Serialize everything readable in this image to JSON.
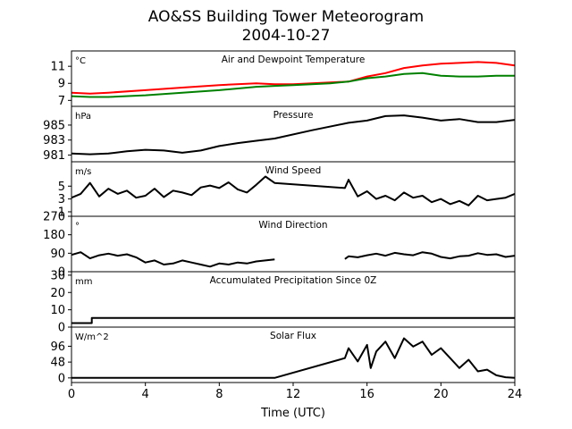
{
  "title": "AO&SS Building Tower Meteorogram",
  "subtitle": "2004-10-27",
  "xlabel": "Time (UTC)",
  "chart_data": {
    "type": "line",
    "title": "AO&SS Building Tower Meteorogram",
    "subtitle": "2004-10-27",
    "xlabel": "Time (UTC)",
    "xlim": [
      0,
      24
    ],
    "xticks": [
      0,
      4,
      8,
      12,
      16,
      20,
      24
    ],
    "xtick_labels": [
      "0",
      "4",
      "8",
      "12",
      "16",
      "20",
      "24"
    ],
    "grid": false,
    "panels": [
      {
        "name": "temperature",
        "label": "Air and Dewpoint Temperature",
        "unit": "°C",
        "ylim": [
          6.3,
          12.8
        ],
        "yticks": [
          7,
          9,
          11
        ],
        "ytick_labels": [
          "7",
          "9",
          "11"
        ],
        "series": [
          {
            "color": "#ff0000",
            "x": [
              0,
              1,
              2,
              4,
              6,
              8,
              10,
              11,
              12,
              14,
              15,
              16,
              17,
              18,
              19,
              20,
              21,
              22,
              23,
              24
            ],
            "y": [
              7.9,
              7.8,
              7.9,
              8.2,
              8.5,
              8.8,
              9.0,
              8.9,
              8.9,
              9.1,
              9.2,
              9.8,
              10.2,
              10.8,
              11.1,
              11.3,
              11.4,
              11.5,
              11.4,
              11.1
            ]
          },
          {
            "color": "#008000",
            "x": [
              0,
              1,
              2,
              4,
              6,
              8,
              10,
              11,
              12,
              14,
              15,
              16,
              17,
              18,
              19,
              20,
              21,
              22,
              23,
              24
            ],
            "y": [
              7.5,
              7.4,
              7.4,
              7.6,
              7.9,
              8.2,
              8.6,
              8.7,
              8.8,
              9.0,
              9.2,
              9.6,
              9.8,
              10.1,
              10.2,
              9.9,
              9.8,
              9.8,
              9.9,
              9.9
            ]
          }
        ]
      },
      {
        "name": "pressure",
        "label": "Pressure",
        "unit": "hPa",
        "ylim": [
          980.1,
          987.5
        ],
        "yticks": [
          981,
          983,
          985
        ],
        "ytick_labels": [
          "981",
          "983",
          "985"
        ],
        "series": [
          {
            "color": "#000000",
            "x": [
              0,
              1,
              2,
              3,
              4,
              5,
              6,
              7,
              8,
              9,
              10,
              11,
              13,
              15,
              16,
              17,
              18,
              19,
              20,
              21,
              22,
              23,
              24
            ],
            "y": [
              981.2,
              981.1,
              981.2,
              981.5,
              981.7,
              981.6,
              981.3,
              981.6,
              982.2,
              982.6,
              982.9,
              983.2,
              984.3,
              985.3,
              985.6,
              986.2,
              986.3,
              986.0,
              985.6,
              985.8,
              985.4,
              985.4,
              985.7
            ]
          }
        ]
      },
      {
        "name": "wind-speed",
        "label": "Wind Speed",
        "unit": "m/s",
        "ylim": [
          0.3,
          8.8
        ],
        "yticks": [
          1,
          3,
          5
        ],
        "ytick_labels": [
          "1",
          "3",
          "5"
        ],
        "series": [
          {
            "color": "#000000",
            "x": [
              0,
              0.5,
              1,
              1.5,
              2,
              2.5,
              3,
              3.5,
              4,
              4.5,
              5,
              5.5,
              6,
              6.5,
              7,
              7.5,
              8,
              8.5,
              9,
              9.5,
              10,
              10.5,
              11,
              14.8,
              15,
              15.5,
              16,
              16.5,
              17,
              17.5,
              18,
              18.5,
              19,
              19.5,
              20,
              20.5,
              21,
              21.5,
              22,
              22.5,
              23,
              23.5,
              24
            ],
            "y": [
              3.2,
              3.8,
              5.5,
              3.4,
              4.6,
              3.8,
              4.3,
              3.2,
              3.5,
              4.6,
              3.3,
              4.3,
              4.0,
              3.6,
              4.8,
              5.1,
              4.7,
              5.6,
              4.5,
              4.0,
              5.2,
              6.5,
              5.5,
              4.7,
              6.0,
              3.4,
              4.2,
              3.0,
              3.5,
              2.8,
              4.0,
              3.2,
              3.5,
              2.5,
              3.0,
              2.2,
              2.7,
              2.0,
              3.5,
              2.8,
              3.0,
              3.2,
              3.8
            ]
          }
        ]
      },
      {
        "name": "wind-direction",
        "label": "Wind Direction",
        "unit": "°",
        "ylim": [
          0,
          270
        ],
        "yticks": [
          0,
          90,
          180,
          270
        ],
        "ytick_labels": [
          "0",
          "90",
          "180",
          "270"
        ],
        "series": [
          {
            "color": "#000000",
            "x": [
              0,
              0.5,
              1,
              1.5,
              2,
              2.5,
              3,
              3.5,
              4,
              4.5,
              5,
              5.5,
              6,
              6.5,
              7,
              7.5,
              8,
              8.5,
              9,
              9.5,
              10,
              10.5,
              11
            ],
            "y": [
              82,
              95,
              65,
              80,
              88,
              78,
              85,
              70,
              45,
              55,
              35,
              40,
              55,
              45,
              35,
              25,
              40,
              35,
              45,
              40,
              50,
              55,
              60
            ]
          },
          {
            "color": "#000000",
            "x": [
              14.8,
              15,
              15.5,
              16,
              16.5,
              17,
              17.5,
              18,
              18.5,
              19,
              19.5,
              20,
              20.5,
              21,
              21.5,
              22,
              22.5,
              23,
              23.5,
              24
            ],
            "y": [
              62,
              75,
              70,
              80,
              88,
              78,
              92,
              85,
              80,
              95,
              88,
              72,
              65,
              75,
              78,
              90,
              82,
              85,
              72,
              78
            ]
          }
        ]
      },
      {
        "name": "precipitation",
        "label": "Accumulated Precipitation Since 0Z",
        "unit": "mm",
        "ylim": [
          0,
          32
        ],
        "yticks": [
          0,
          10,
          20,
          30
        ],
        "ytick_labels": [
          "0",
          "10",
          "20",
          "30"
        ],
        "series": [
          {
            "color": "#000000",
            "x": [
              0,
              1.1,
              1.1,
              24
            ],
            "y": [
              2.3,
              2.3,
              5.3,
              5.3
            ]
          }
        ]
      },
      {
        "name": "solar-flux",
        "label": "Solar Flux",
        "unit": "W/m^2",
        "ylim": [
          -14,
          154
        ],
        "yticks": [
          0,
          48,
          96
        ],
        "ytick_labels": [
          "0",
          "48",
          "96"
        ],
        "series": [
          {
            "color": "#000000",
            "x": [
              0,
              11,
              14.8,
              15,
              15.5,
              16,
              16.2,
              16.5,
              17,
              17.5,
              18,
              18.5,
              19,
              19.5,
              20,
              20.5,
              21,
              21.5,
              22,
              22.5,
              23,
              23.5,
              24
            ],
            "y": [
              0,
              0,
              60,
              90,
              50,
              100,
              30,
              80,
              110,
              60,
              120,
              95,
              110,
              70,
              90,
              60,
              30,
              55,
              20,
              25,
              8,
              2,
              0
            ]
          }
        ]
      }
    ]
  }
}
